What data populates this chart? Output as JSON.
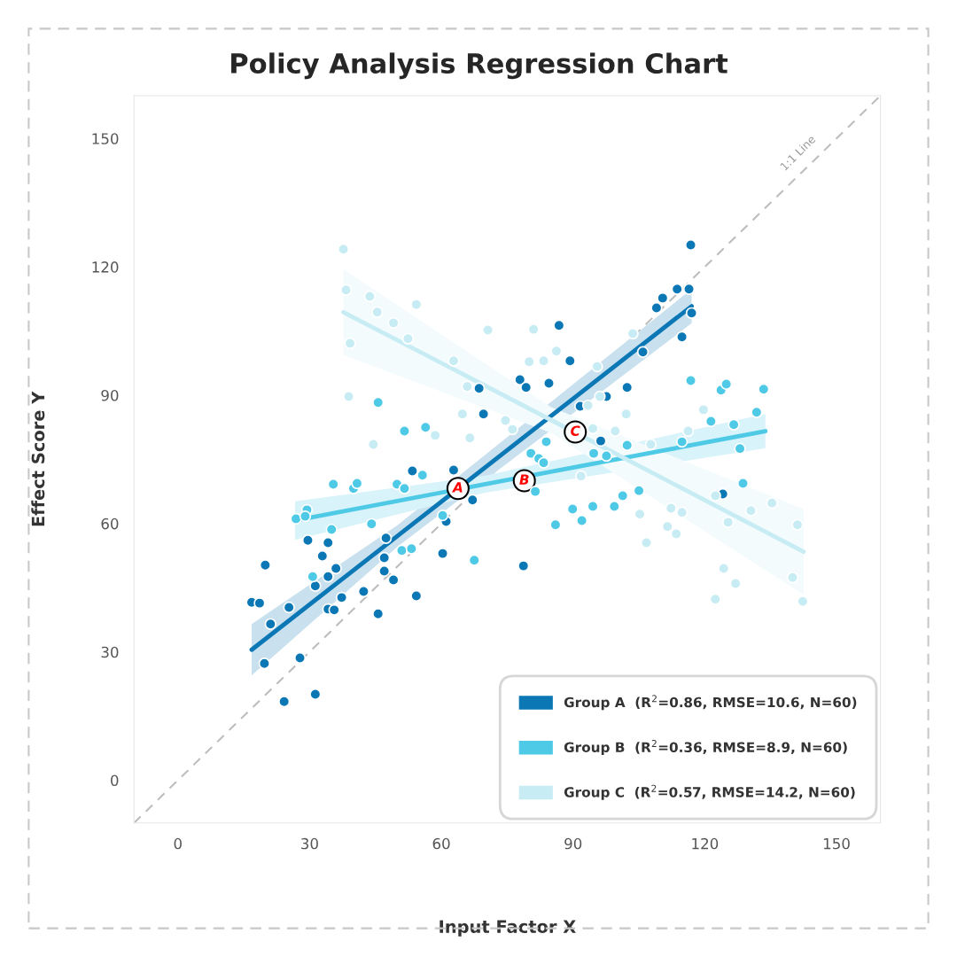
{
  "chart_data": {
    "type": "scatter",
    "title": "Policy Analysis Regression Chart",
    "xlabel": "Input Factor X",
    "ylabel": "Effect Score Y",
    "xlim": [
      -10,
      160
    ],
    "ylim": [
      -10,
      160
    ],
    "xticks": [
      0,
      30,
      60,
      90,
      120,
      150
    ],
    "yticks": [
      0,
      30,
      60,
      90,
      120,
      150
    ],
    "legend": "bottom right",
    "series": [
      {
        "type": "line",
        "name": "1:1 Line",
        "color": "#bdbdbd",
        "line_style": "dashed",
        "marker": "none",
        "x": [
          -10,
          160
        ],
        "values": [
          -10,
          160
        ]
      },
      {
        "marker": "circle",
        "name": "Group A  (R$^{2}$=0.86, RMSE=10.6, N=60)",
        "color": "#0b78b5",
        "x": [
          16.8,
          18.6,
          19.9,
          19.7,
          21.1,
          24.2,
          25.3,
          27.8,
          29.6,
          31.3,
          31.3,
          32.9,
          34.2,
          34.2,
          34.2,
          35.6,
          36.0,
          37.3,
          42.3,
          45.6,
          47.0,
          47.0,
          47.4,
          49.1,
          53.4,
          54.3,
          60.3,
          61.1,
          62.8,
          67.1,
          78.7,
          68.6,
          69.6,
          77.9,
          79.3,
          84.5,
          86.8,
          89.3,
          91.6,
          96.3,
          97.6,
          102.3,
          105.9,
          109.0,
          110.4,
          113.7,
          116.4,
          117.0,
          114.8,
          116.8,
          124.1
        ],
        "values": [
          41.6,
          41.4,
          50.3,
          27.3,
          36.5,
          18.4,
          40.4,
          28.6,
          56.1,
          20.1,
          45.4,
          52.4,
          47.6,
          55.5,
          40.0,
          39.8,
          49.5,
          42.7,
          44.1,
          38.9,
          48.9,
          52.0,
          56.6,
          46.8,
          72.3,
          43.1,
          53.0,
          60.5,
          72.5,
          65.5,
          50.1,
          91.6,
          85.6,
          93.6,
          91.8,
          92.8,
          106.3,
          98.0,
          87.4,
          79.3,
          89.7,
          91.8,
          100.1,
          110.4,
          112.7,
          114.8,
          114.8,
          109.2,
          103.6,
          125.1,
          66.9
        ]
      },
      {
        "marker": "circle",
        "name": "Group B  (R$^{2}$=0.36, RMSE=8.9, N=60)",
        "color": "#4ecae6",
        "x": [
          35.4,
          40.0,
          40.8,
          49.9,
          51.6,
          55.7,
          29.4,
          26.9,
          29.0,
          35.0,
          44.1,
          30.7,
          60.3,
          67.5,
          51.0,
          53.2,
          45.6,
          51.6,
          56.4,
          80.4,
          82.2,
          83.3,
          81.4,
          86.0,
          92.0,
          89.9,
          94.5,
          99.4,
          101.3,
          105.0,
          94.7,
          97.6,
          116.8,
          123.7,
          124.9,
          133.4,
          131.8,
          121.4,
          126.6,
          128.7,
          128.0,
          114.8,
          83.9,
          102.3
        ],
        "values": [
          69.2,
          68.2,
          69.4,
          69.2,
          68.2,
          71.3,
          63.2,
          61.1,
          61.7,
          58.6,
          59.9,
          47.6,
          61.9,
          51.4,
          53.7,
          54.1,
          88.3,
          81.6,
          82.5,
          76.4,
          75.2,
          74.2,
          67.5,
          59.7,
          60.7,
          63.4,
          64.0,
          64.0,
          66.5,
          67.7,
          76.4,
          75.8,
          93.4,
          91.2,
          92.6,
          91.4,
          86.0,
          83.9,
          83.1,
          69.4,
          77.5,
          79.1,
          79.1,
          78.3
        ]
      },
      {
        "marker": "circle",
        "name": "Group C  (R$^{2}$=0.57, RMSE=14.2, N=60)",
        "color": "#c8ecf4",
        "x": [
          37.7,
          38.3,
          43.7,
          45.4,
          49.1,
          39.2,
          52.4,
          54.3,
          62.8,
          65.9,
          38.9,
          44.5,
          64.8,
          58.6,
          66.5,
          70.6,
          81.0,
          80.0,
          83.3,
          86.2,
          95.5,
          103.6,
          96.1,
          93.4,
          102.1,
          99.6,
          116.2,
          119.7,
          107.7,
          74.6,
          76.2,
          94.5,
          105.2,
          106.7,
          111.5,
          113.5,
          112.3,
          114.8,
          91.8,
          122.4,
          125.3,
          130.5,
          135.3,
          141.1,
          124.3,
          127.0,
          122.4,
          140.0,
          142.3
        ],
        "values": [
          124.1,
          114.6,
          113.1,
          109.4,
          106.9,
          102.1,
          103.2,
          111.2,
          98.0,
          92.0,
          89.7,
          78.5,
          85.6,
          80.6,
          80.0,
          105.2,
          105.4,
          97.8,
          98.0,
          100.3,
          96.7,
          104.4,
          89.7,
          87.6,
          85.6,
          81.6,
          81.6,
          86.6,
          78.5,
          84.1,
          82.0,
          82.2,
          62.2,
          55.5,
          59.3,
          57.6,
          63.6,
          62.6,
          71.1,
          66.5,
          60.3,
          63.0,
          64.8,
          59.7,
          49.5,
          46.0,
          42.3,
          47.4,
          41.8
        ]
      },
      {
        "type": "line",
        "marker": "none",
        "color": "#0b78b5",
        "x": [
          16.8,
          50.0,
          117.0
        ],
        "values": [
          30.5,
          57.1,
          110.8
        ],
        "lower": [
          24.5,
          54.6,
          106.8
        ],
        "upper": [
          36.5,
          59.6,
          114.8
        ]
      },
      {
        "type": "line",
        "marker": "none",
        "color": "#4ecae6",
        "x": [
          26.7,
          70.0,
          133.8
        ],
        "values": [
          60.7,
          69.2,
          81.6
        ],
        "lower": [
          56.2,
          67.2,
          77.6
        ],
        "upper": [
          65.2,
          71.2,
          85.6
        ]
      },
      {
        "type": "line",
        "marker": "none",
        "color": "#c8ecf4",
        "x": [
          37.7,
          85.0,
          142.5
        ],
        "values": [
          109.4,
          84.2,
          53.4
        ],
        "lower": [
          99.4,
          81.2,
          43.4
        ],
        "upper": [
          119.4,
          87.2,
          63.4
        ]
      }
    ],
    "annotations": [
      {
        "text": "A",
        "x": 63.8,
        "y": 68.2
      },
      {
        "text": "B",
        "x": 78.9,
        "y": 70.0
      },
      {
        "text": "C",
        "x": 90.5,
        "y": 81.4
      }
    ]
  }
}
